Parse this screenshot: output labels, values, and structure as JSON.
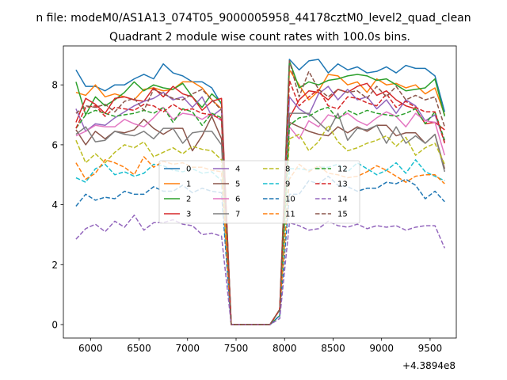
{
  "figure": {
    "suptitle": "n file: modeM0/AS1A13_074T05_9000005958_44178cztM0_level2_quad_clean",
    "offset_label": "+4.3894e8"
  },
  "chart_data": {
    "type": "line",
    "title": "Quadrant 2 module wise count rates with 100.0s bins.",
    "xlabel": "",
    "ylabel": "",
    "x_offset": 438940000,
    "xlim": [
      5720,
      9770
    ],
    "ylim": [
      -0.45,
      9.3
    ],
    "xticks": [
      6000,
      6500,
      7000,
      7500,
      8000,
      8500,
      9000,
      9500
    ],
    "xtick_labels": [
      "6000",
      "6500",
      "7000",
      "7500",
      "8000",
      "8500",
      "9000",
      "9500"
    ],
    "yticks": [
      0,
      2,
      4,
      6,
      8
    ],
    "ytick_labels": [
      "0",
      "2",
      "4",
      "6",
      "8"
    ],
    "x": [
      5850,
      5950,
      6050,
      6150,
      6250,
      6350,
      6450,
      6550,
      6650,
      6750,
      6850,
      6950,
      7050,
      7150,
      7250,
      7350,
      7450,
      7550,
      7650,
      7750,
      7850,
      7950,
      8050,
      8150,
      8250,
      8350,
      8450,
      8550,
      8650,
      8750,
      8850,
      8950,
      9050,
      9150,
      9250,
      9350,
      9450,
      9550,
      9650
    ],
    "legend": {
      "position": "center",
      "ncol": 4
    },
    "series": [
      {
        "name": "0",
        "color": "#1f77b4",
        "dash": "solid",
        "values": [
          8.5,
          7.95,
          7.95,
          7.8,
          8.0,
          8.0,
          8.2,
          8.35,
          8.2,
          8.7,
          8.4,
          8.3,
          8.1,
          8.1,
          7.9,
          7.35,
          0,
          0,
          0,
          0,
          0,
          0.5,
          8.85,
          8.5,
          8.8,
          8.85,
          8.4,
          8.7,
          8.5,
          8.6,
          8.4,
          8.45,
          8.6,
          8.4,
          8.65,
          8.55,
          8.55,
          8.3,
          7.1
        ]
      },
      {
        "name": "1",
        "color": "#ff7f0e",
        "dash": "solid",
        "values": [
          7.75,
          7.65,
          8.0,
          7.6,
          7.7,
          7.6,
          7.5,
          7.85,
          7.9,
          7.8,
          7.85,
          8.1,
          8.1,
          7.9,
          7.5,
          7.2,
          0,
          0,
          0,
          0,
          0,
          0.5,
          8.5,
          8.0,
          7.5,
          7.8,
          8.35,
          8.3,
          8.0,
          8.1,
          7.75,
          8.2,
          8.0,
          8.05,
          7.9,
          8.0,
          7.7,
          7.9,
          7.0
        ]
      },
      {
        "name": "2",
        "color": "#2ca02c",
        "dash": "solid",
        "values": [
          8.1,
          7.0,
          7.6,
          7.3,
          7.5,
          7.75,
          8.1,
          7.8,
          8.0,
          7.9,
          7.85,
          8.05,
          7.6,
          7.25,
          7.7,
          7.4,
          0,
          0,
          0,
          0,
          0,
          0.3,
          8.8,
          7.9,
          8.1,
          8.0,
          8.15,
          8.2,
          8.3,
          8.35,
          8.3,
          8.15,
          8.2,
          8.0,
          7.8,
          7.85,
          7.9,
          8.2,
          6.95
        ]
      },
      {
        "name": "3",
        "color": "#d62728",
        "dash": "solid",
        "values": [
          6.75,
          7.55,
          7.35,
          7.05,
          7.55,
          7.6,
          7.5,
          7.45,
          7.9,
          7.6,
          7.95,
          7.7,
          7.6,
          7.15,
          7.45,
          7.55,
          0,
          0,
          0,
          0,
          0,
          0.5,
          6.9,
          7.5,
          7.8,
          7.75,
          7.5,
          7.85,
          7.75,
          7.95,
          8.05,
          7.65,
          7.8,
          7.5,
          7.3,
          7.2,
          6.7,
          6.75,
          6.5
        ]
      },
      {
        "name": "4",
        "color": "#9467bd",
        "dash": "solid",
        "values": [
          7.2,
          6.45,
          6.7,
          6.65,
          6.9,
          7.1,
          7.3,
          7.45,
          7.55,
          7.75,
          7.5,
          7.6,
          7.25,
          7.6,
          6.95,
          7.2,
          0,
          0,
          0,
          0,
          0,
          0.5,
          7.6,
          7.2,
          7.0,
          7.7,
          7.95,
          7.5,
          7.85,
          7.5,
          7.6,
          7.2,
          7.5,
          7.05,
          7.5,
          7.3,
          6.8,
          7.0,
          6.1
        ]
      },
      {
        "name": "5",
        "color": "#8c564b",
        "dash": "solid",
        "values": [
          6.5,
          6.0,
          6.45,
          6.2,
          6.45,
          6.4,
          6.5,
          6.85,
          6.55,
          6.35,
          6.55,
          6.55,
          5.8,
          6.3,
          6.95,
          6.2,
          0,
          0,
          0,
          0,
          0,
          0.5,
          6.75,
          6.6,
          6.45,
          6.35,
          6.3,
          6.6,
          6.4,
          6.6,
          6.45,
          6.65,
          6.65,
          6.3,
          6.4,
          6.4,
          6.05,
          6.35,
          5.2
        ]
      },
      {
        "name": "6",
        "color": "#e377c2",
        "dash": "solid",
        "values": [
          6.3,
          6.45,
          6.65,
          6.6,
          6.6,
          6.85,
          6.7,
          6.6,
          6.9,
          7.25,
          6.85,
          7.05,
          7.0,
          6.85,
          7.05,
          6.8,
          0,
          0,
          0,
          0,
          0,
          0.5,
          6.6,
          6.2,
          6.8,
          6.6,
          7.0,
          6.9,
          7.05,
          6.8,
          6.65,
          6.9,
          7.1,
          6.95,
          6.6,
          7.05,
          6.8,
          6.75,
          5.65
        ]
      },
      {
        "name": "7",
        "color": "#7f7f7f",
        "dash": "solid",
        "values": [
          6.35,
          6.6,
          6.1,
          6.15,
          6.45,
          6.35,
          6.3,
          6.45,
          6.2,
          6.55,
          6.55,
          6.05,
          6.4,
          6.45,
          6.45,
          6.0,
          0,
          0,
          0,
          0,
          0,
          0.5,
          7.05,
          7.05,
          7.05,
          6.75,
          6.45,
          7.05,
          6.15,
          6.55,
          6.5,
          6.65,
          6.05,
          6.6,
          6.05,
          6.3,
          6.05,
          6.35,
          5.1
        ]
      },
      {
        "name": "8",
        "color": "#bcbd22",
        "dash": "dashed",
        "values": [
          6.15,
          5.4,
          5.7,
          5.4,
          5.75,
          6.0,
          5.9,
          6.1,
          5.6,
          5.75,
          5.9,
          5.7,
          5.95,
          5.85,
          5.8,
          5.5,
          0,
          0,
          0,
          0,
          0,
          0.5,
          6.2,
          6.35,
          5.8,
          6.1,
          6.65,
          6.1,
          5.8,
          5.9,
          6.05,
          6.15,
          6.3,
          5.95,
          6.25,
          5.65,
          5.9,
          6.05,
          5.35
        ]
      },
      {
        "name": "9",
        "color": "#17becf",
        "dash": "dashed",
        "values": [
          4.9,
          4.75,
          5.2,
          5.35,
          5.0,
          5.1,
          4.95,
          5.05,
          5.35,
          5.3,
          5.15,
          5.1,
          5.2,
          5.05,
          5.1,
          4.8,
          0,
          0,
          0,
          0,
          0,
          0.5,
          5.2,
          5.2,
          5.15,
          5.25,
          5.25,
          5.35,
          5.1,
          5.4,
          5.2,
          5.0,
          5.15,
          5.4,
          5.05,
          5.5,
          5.1,
          4.95,
          4.8
        ]
      },
      {
        "name": "10",
        "color": "#1f77b4",
        "dash": "dashed",
        "values": [
          3.95,
          4.35,
          4.15,
          4.25,
          4.2,
          4.45,
          4.35,
          4.35,
          4.6,
          4.45,
          4.45,
          4.65,
          4.4,
          4.55,
          4.45,
          4.4,
          0,
          0,
          0,
          0,
          0,
          0.3,
          4.35,
          4.35,
          4.8,
          4.7,
          4.95,
          4.65,
          4.6,
          4.45,
          4.55,
          4.55,
          4.75,
          4.7,
          4.85,
          4.65,
          4.2,
          4.45,
          4.1
        ]
      },
      {
        "name": "11",
        "color": "#ff7f0e",
        "dash": "dashed",
        "values": [
          5.4,
          4.85,
          5.05,
          5.5,
          5.4,
          5.25,
          5.0,
          5.6,
          5.25,
          5.45,
          5.35,
          5.4,
          5.25,
          5.25,
          5.15,
          5.1,
          0,
          0,
          0,
          0,
          0,
          0.5,
          4.85,
          5.35,
          5.1,
          5.3,
          5.05,
          5.0,
          4.9,
          4.95,
          5.1,
          5.3,
          5.15,
          4.95,
          4.75,
          4.95,
          5.0,
          5.0,
          4.7
        ]
      },
      {
        "name": "12",
        "color": "#2ca02c",
        "dash": "dashed",
        "values": [
          6.55,
          7.0,
          7.15,
          7.05,
          6.95,
          7.0,
          7.05,
          7.15,
          7.05,
          7.25,
          6.75,
          7.2,
          7.1,
          6.65,
          7.05,
          6.9,
          0,
          0,
          0,
          0,
          0,
          0.5,
          6.65,
          6.9,
          6.95,
          7.15,
          7.25,
          6.85,
          7.15,
          7.0,
          7.15,
          7.05,
          7.0,
          6.95,
          7.05,
          7.2,
          6.7,
          7.1,
          6.15
        ]
      },
      {
        "name": "13",
        "color": "#d62728",
        "dash": "dashed",
        "values": [
          6.55,
          7.25,
          7.3,
          6.95,
          7.25,
          7.2,
          7.15,
          7.35,
          7.3,
          7.1,
          7.35,
          7.15,
          7.2,
          7.05,
          7.0,
          6.85,
          0,
          0,
          0,
          0,
          0,
          0.5,
          8.15,
          7.3,
          7.6,
          7.85,
          7.3,
          7.2,
          7.6,
          7.55,
          7.4,
          7.3,
          7.7,
          7.25,
          7.45,
          7.25,
          7.1,
          7.1,
          6.05
        ]
      },
      {
        "name": "14",
        "color": "#9467bd",
        "dash": "dashed",
        "values": [
          2.85,
          3.2,
          3.35,
          3.1,
          3.45,
          3.25,
          3.65,
          3.15,
          3.4,
          3.4,
          3.5,
          3.35,
          3.3,
          3.0,
          3.05,
          2.95,
          0,
          0,
          0,
          0,
          0,
          0.2,
          3.4,
          3.3,
          3.15,
          3.2,
          3.45,
          3.3,
          3.25,
          3.35,
          3.2,
          3.3,
          3.25,
          3.3,
          3.15,
          3.25,
          3.3,
          3.3,
          2.55
        ]
      },
      {
        "name": "15",
        "color": "#8c564b",
        "dash": "dashed",
        "values": [
          7.05,
          7.3,
          7.25,
          7.35,
          7.1,
          7.45,
          7.55,
          7.15,
          7.85,
          7.7,
          7.55,
          7.5,
          7.7,
          7.85,
          7.5,
          7.15,
          0,
          0,
          0,
          0,
          0,
          0.5,
          8.8,
          7.6,
          8.45,
          7.85,
          7.6,
          7.85,
          7.75,
          7.8,
          7.55,
          7.95,
          7.6,
          7.95,
          7.5,
          7.65,
          7.5,
          7.6,
          6.6
        ]
      }
    ]
  }
}
